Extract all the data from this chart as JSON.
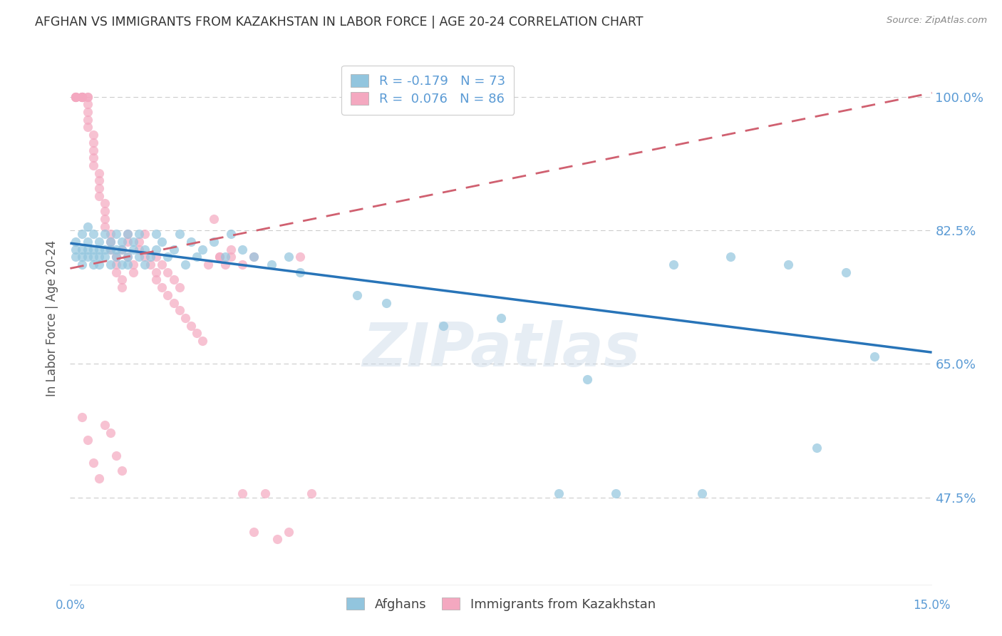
{
  "title": "AFGHAN VS IMMIGRANTS FROM KAZAKHSTAN IN LABOR FORCE | AGE 20-24 CORRELATION CHART",
  "source": "Source: ZipAtlas.com",
  "ylabel": "In Labor Force | Age 20-24",
  "ytick_values": [
    0.475,
    0.65,
    0.825,
    1.0
  ],
  "ytick_labels": [
    "47.5%",
    "65.0%",
    "82.5%",
    "100.0%"
  ],
  "xlim": [
    0.0,
    0.15
  ],
  "ylim": [
    0.36,
    1.06
  ],
  "watermark": "ZIPatlas",
  "legend_label_afghans": "Afghans",
  "legend_label_kazakh": "Immigrants from Kazakhstan",
  "afghan_color": "#92c5de",
  "kazakh_color": "#f4a8c0",
  "afghan_R": -0.179,
  "kazakh_R": 0.076,
  "afghan_N": 73,
  "kazakh_N": 86,
  "grid_color": "#cccccc",
  "title_color": "#333333",
  "axis_tick_color": "#5b9bd5",
  "trend_blue_color": "#2874b8",
  "trend_pink_color": "#d06070",
  "afghan_trend_x0": 0.0,
  "afghan_trend_y0": 0.808,
  "afghan_trend_x1": 0.15,
  "afghan_trend_y1": 0.665,
  "kazakh_trend_x0": 0.0,
  "kazakh_trend_y0": 0.775,
  "kazakh_trend_x1": 0.15,
  "kazakh_trend_y1": 1.005,
  "afghan_x": [
    0.001,
    0.001,
    0.001,
    0.002,
    0.002,
    0.002,
    0.002,
    0.003,
    0.003,
    0.003,
    0.003,
    0.004,
    0.004,
    0.004,
    0.004,
    0.005,
    0.005,
    0.005,
    0.005,
    0.006,
    0.006,
    0.006,
    0.007,
    0.007,
    0.007,
    0.008,
    0.008,
    0.008,
    0.009,
    0.009,
    0.009,
    0.01,
    0.01,
    0.01,
    0.011,
    0.011,
    0.012,
    0.012,
    0.013,
    0.013,
    0.014,
    0.015,
    0.015,
    0.016,
    0.017,
    0.018,
    0.019,
    0.02,
    0.021,
    0.022,
    0.023,
    0.025,
    0.027,
    0.028,
    0.03,
    0.032,
    0.035,
    0.038,
    0.04,
    0.05,
    0.055,
    0.065,
    0.075,
    0.085,
    0.095,
    0.105,
    0.115,
    0.125,
    0.135,
    0.14,
    0.09,
    0.11,
    0.13
  ],
  "afghan_y": [
    0.8,
    0.79,
    0.81,
    0.78,
    0.8,
    0.82,
    0.79,
    0.81,
    0.8,
    0.83,
    0.79,
    0.78,
    0.82,
    0.8,
    0.79,
    0.81,
    0.8,
    0.79,
    0.78,
    0.8,
    0.82,
    0.79,
    0.78,
    0.81,
    0.8,
    0.79,
    0.82,
    0.8,
    0.78,
    0.81,
    0.8,
    0.82,
    0.79,
    0.78,
    0.8,
    0.81,
    0.82,
    0.79,
    0.78,
    0.8,
    0.79,
    0.82,
    0.8,
    0.81,
    0.79,
    0.8,
    0.82,
    0.78,
    0.81,
    0.79,
    0.8,
    0.81,
    0.79,
    0.82,
    0.8,
    0.79,
    0.78,
    0.79,
    0.77,
    0.74,
    0.73,
    0.7,
    0.71,
    0.48,
    0.48,
    0.78,
    0.79,
    0.78,
    0.77,
    0.66,
    0.63,
    0.48,
    0.54
  ],
  "kazakh_x": [
    0.001,
    0.001,
    0.001,
    0.001,
    0.002,
    0.002,
    0.002,
    0.002,
    0.002,
    0.003,
    0.003,
    0.003,
    0.003,
    0.003,
    0.003,
    0.004,
    0.004,
    0.004,
    0.004,
    0.004,
    0.005,
    0.005,
    0.005,
    0.005,
    0.006,
    0.006,
    0.006,
    0.006,
    0.007,
    0.007,
    0.007,
    0.008,
    0.008,
    0.008,
    0.009,
    0.009,
    0.009,
    0.01,
    0.01,
    0.01,
    0.011,
    0.011,
    0.012,
    0.012,
    0.013,
    0.013,
    0.014,
    0.015,
    0.015,
    0.016,
    0.017,
    0.018,
    0.019,
    0.02,
    0.021,
    0.022,
    0.023,
    0.024,
    0.025,
    0.026,
    0.027,
    0.028,
    0.03,
    0.032,
    0.034,
    0.036,
    0.038,
    0.04,
    0.042,
    0.015,
    0.016,
    0.017,
    0.018,
    0.019,
    0.002,
    0.003,
    0.004,
    0.005,
    0.006,
    0.007,
    0.008,
    0.009,
    0.026,
    0.028,
    0.03,
    0.032
  ],
  "kazakh_y": [
    1.0,
    1.0,
    1.0,
    1.0,
    1.0,
    1.0,
    1.0,
    1.0,
    1.0,
    1.0,
    1.0,
    0.99,
    0.98,
    0.97,
    0.96,
    0.95,
    0.94,
    0.93,
    0.92,
    0.91,
    0.9,
    0.89,
    0.88,
    0.87,
    0.86,
    0.85,
    0.84,
    0.83,
    0.82,
    0.81,
    0.8,
    0.79,
    0.78,
    0.77,
    0.76,
    0.75,
    0.8,
    0.82,
    0.81,
    0.79,
    0.78,
    0.77,
    0.81,
    0.8,
    0.82,
    0.79,
    0.78,
    0.77,
    0.76,
    0.75,
    0.74,
    0.73,
    0.72,
    0.71,
    0.7,
    0.69,
    0.68,
    0.78,
    0.84,
    0.79,
    0.78,
    0.79,
    0.48,
    0.43,
    0.48,
    0.42,
    0.43,
    0.79,
    0.48,
    0.79,
    0.78,
    0.77,
    0.76,
    0.75,
    0.58,
    0.55,
    0.52,
    0.5,
    0.57,
    0.56,
    0.53,
    0.51,
    0.79,
    0.8,
    0.78,
    0.79
  ]
}
